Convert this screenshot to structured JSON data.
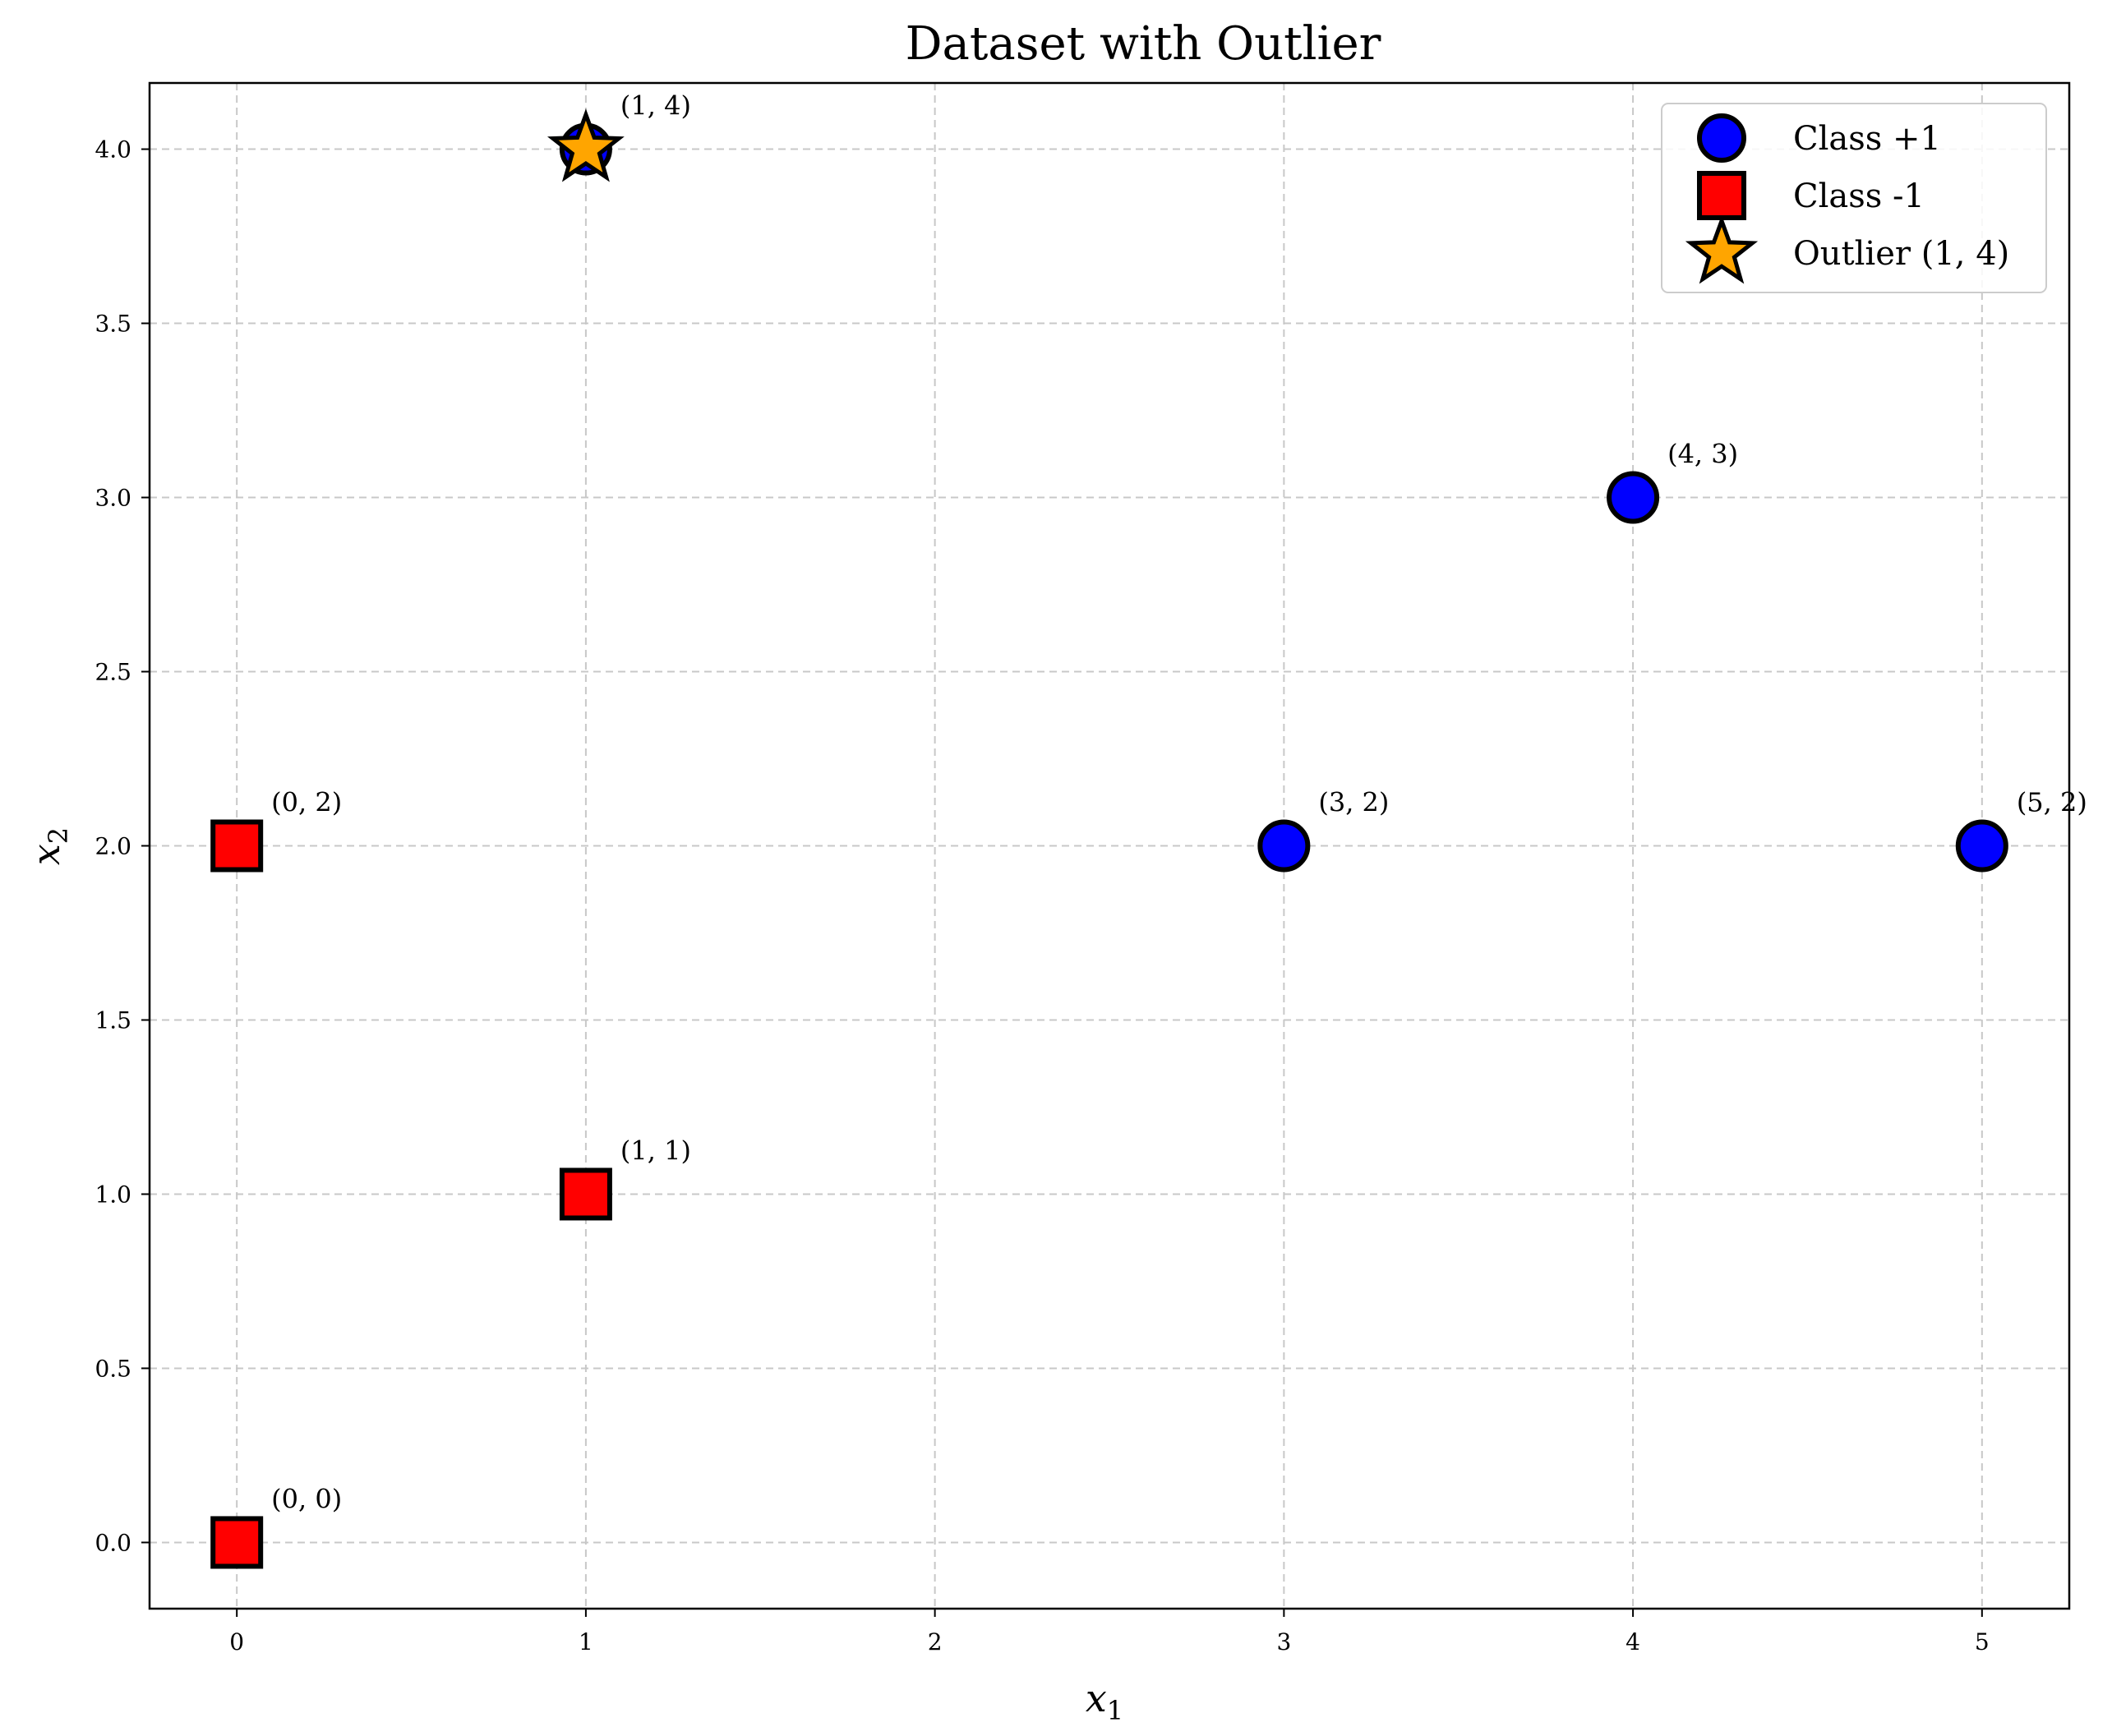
{
  "chart_data": {
    "type": "scatter",
    "title": "Dataset with Outlier",
    "xlabel": {
      "base": "x",
      "sub": "1"
    },
    "ylabel": {
      "base": "x",
      "sub": "2"
    },
    "xlim": [
      -0.25,
      5.25
    ],
    "ylim": [
      -0.19,
      4.19
    ],
    "xticks": [
      0,
      1,
      2,
      3,
      4,
      5
    ],
    "yticks": [
      0.0,
      0.5,
      1.0,
      1.5,
      2.0,
      2.5,
      3.0,
      3.5,
      4.0
    ],
    "grid": true,
    "legend_position": "top-right",
    "series": [
      {
        "name": "Class +1",
        "marker": "circle",
        "color": "#0000ff",
        "points": [
          [
            1,
            4
          ],
          [
            3,
            2
          ],
          [
            4,
            3
          ],
          [
            5,
            2
          ]
        ]
      },
      {
        "name": "Class -1",
        "marker": "square",
        "color": "#ff0000",
        "points": [
          [
            0,
            0
          ],
          [
            0,
            2
          ],
          [
            1,
            1
          ]
        ]
      },
      {
        "name": "Outlier (1, 4)",
        "marker": "star",
        "color": "#ffa500",
        "points": [
          [
            1,
            4
          ]
        ]
      }
    ],
    "annotations": [
      {
        "text": "(0, 0)",
        "x": 0,
        "y": 0
      },
      {
        "text": "(0, 2)",
        "x": 0,
        "y": 2
      },
      {
        "text": "(1, 1)",
        "x": 1,
        "y": 1
      },
      {
        "text": "(1, 4)",
        "x": 1,
        "y": 4
      },
      {
        "text": "(3, 2)",
        "x": 3,
        "y": 2
      },
      {
        "text": "(4, 3)",
        "x": 4,
        "y": 3
      },
      {
        "text": "(5, 2)",
        "x": 5,
        "y": 2
      }
    ]
  }
}
